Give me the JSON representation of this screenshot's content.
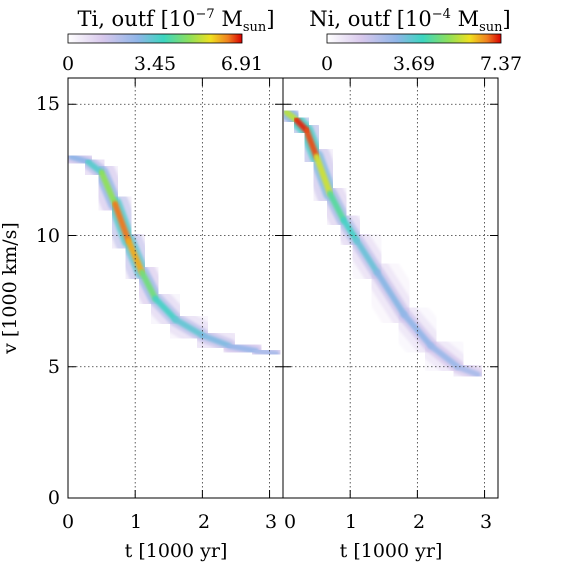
{
  "chart_data": [
    {
      "type": "heatmap",
      "title_main": "Ti, outf [10",
      "title_exp": "−7",
      "title_unit": " M",
      "title_sub": "sun",
      "title_close": "]",
      "colorbar_ticks": [
        "0",
        "3.45",
        "6.91"
      ],
      "colorbar_range": [
        0,
        6.91
      ],
      "xlabel": "t [1000 yr]",
      "ylabel": "v [1000 km/s]",
      "xticks": [
        "0",
        "1",
        "2",
        "3"
      ],
      "yticks": [
        "0",
        "5",
        "10",
        "15"
      ],
      "xlim": [
        0,
        3.2
      ],
      "ylim": [
        0,
        16
      ],
      "ridge": {
        "t": [
          0.05,
          0.3,
          0.5,
          0.7,
          0.9,
          1.1,
          1.3,
          1.6,
          2.0,
          2.4,
          2.8,
          3.1
        ],
        "v": [
          13.0,
          12.8,
          12.4,
          11.2,
          9.8,
          8.6,
          7.6,
          6.8,
          6.2,
          5.8,
          5.6,
          5.5
        ],
        "intensity": [
          0.35,
          0.45,
          0.55,
          0.85,
          1.0,
          0.75,
          0.55,
          0.5,
          0.45,
          0.4,
          0.35,
          0.3
        ]
      }
    },
    {
      "type": "heatmap",
      "title_main": "Ni, outf [10",
      "title_exp": "−4",
      "title_unit": " M",
      "title_sub": "sun",
      "title_close": "]",
      "colorbar_ticks": [
        "0",
        "3.69",
        "7.37"
      ],
      "colorbar_range": [
        0,
        7.37
      ],
      "xlabel": "t [1000 yr]",
      "ylabel": "",
      "xticks": [
        "0",
        "1",
        "2",
        "3"
      ],
      "yticks": [],
      "xlim": [
        0,
        3.2
      ],
      "ylim": [
        0,
        16
      ],
      "ridge": {
        "t": [
          0.05,
          0.2,
          0.35,
          0.5,
          0.7,
          0.9,
          1.1,
          1.4,
          1.8,
          2.2,
          2.6,
          2.9
        ],
        "v": [
          14.7,
          14.4,
          14.0,
          13.0,
          11.6,
          10.6,
          9.8,
          8.6,
          7.0,
          5.8,
          5.0,
          4.7
        ],
        "intensity": [
          0.55,
          0.95,
          1.0,
          0.9,
          0.65,
          0.55,
          0.5,
          0.42,
          0.4,
          0.38,
          0.35,
          0.3
        ]
      }
    }
  ]
}
